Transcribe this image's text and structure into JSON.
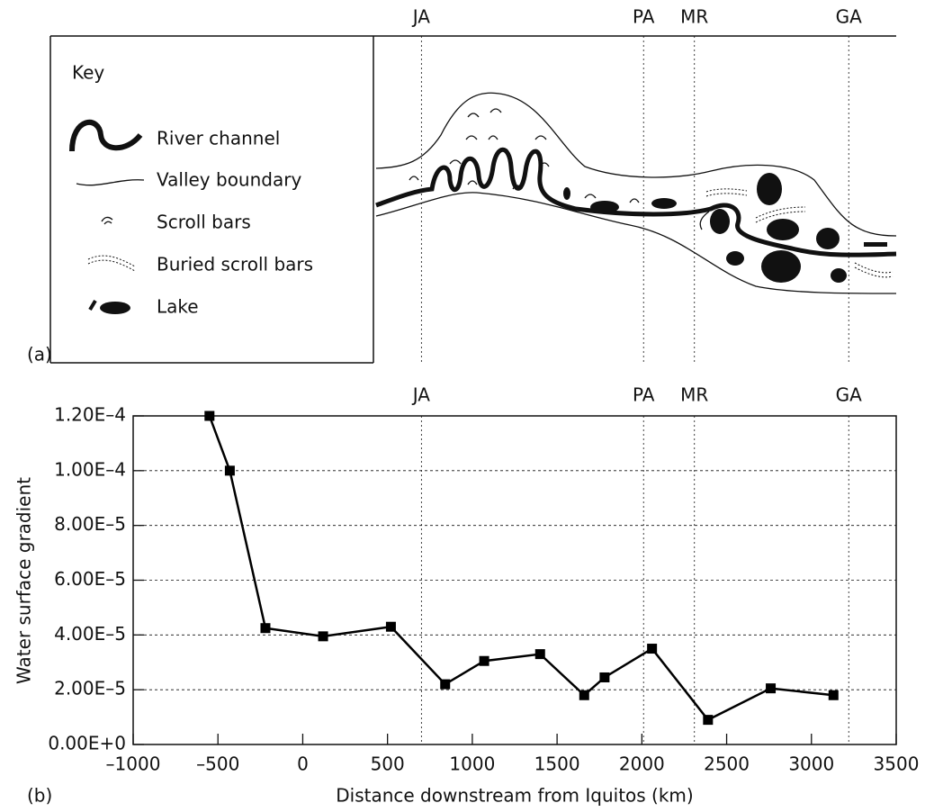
{
  "panel_a": {
    "label": "(a)",
    "key_title": "Key",
    "key_items": [
      "River channel",
      "Valley boundary",
      "Scroll bars",
      "Buried scroll bars",
      "Lake"
    ]
  },
  "chart_data": {
    "type": "line",
    "panel_label": "(b)",
    "y_label": "Water surface gradient",
    "x_label": "Distance downstream from Iquitos (km)",
    "x": [
      -550,
      -430,
      -220,
      120,
      520,
      840,
      1070,
      1400,
      1660,
      1780,
      2060,
      2390,
      2760,
      3130
    ],
    "values": [
      0.00012,
      0.0001,
      4.25e-05,
      3.95e-05,
      4.3e-05,
      2.2e-05,
      3.05e-05,
      3.3e-05,
      1.8e-05,
      2.45e-05,
      3.5e-05,
      9e-06,
      2.05e-05,
      1.8e-05
    ],
    "color": "#000000",
    "markers": [
      {
        "label": "JA",
        "x": 700
      },
      {
        "label": "PA",
        "x": 2010
      },
      {
        "label": "MR",
        "x": 2310
      },
      {
        "label": "GA",
        "x": 3220
      }
    ],
    "xlim": [
      -1000,
      3500
    ],
    "ylim": [
      0,
      0.00012
    ],
    "xticks": [
      {
        "value": -1000,
        "label": "–1000"
      },
      {
        "value": -500,
        "label": "–500"
      },
      0,
      500,
      1000,
      1500,
      2000,
      2500,
      3000,
      3500
    ],
    "yticks": [
      {
        "value": 0,
        "label": "0.00E+0"
      },
      {
        "value": 2e-05,
        "label": "2.00E–5"
      },
      {
        "value": 4e-05,
        "label": "4.00E–5"
      },
      {
        "value": 6e-05,
        "label": "6.00E–5"
      },
      {
        "value": 8e-05,
        "label": "8.00E–5"
      },
      {
        "value": 0.0001,
        "label": "1.00E–4"
      },
      {
        "value": 0.00012,
        "label": "1.20E–4"
      }
    ],
    "grid": true
  }
}
